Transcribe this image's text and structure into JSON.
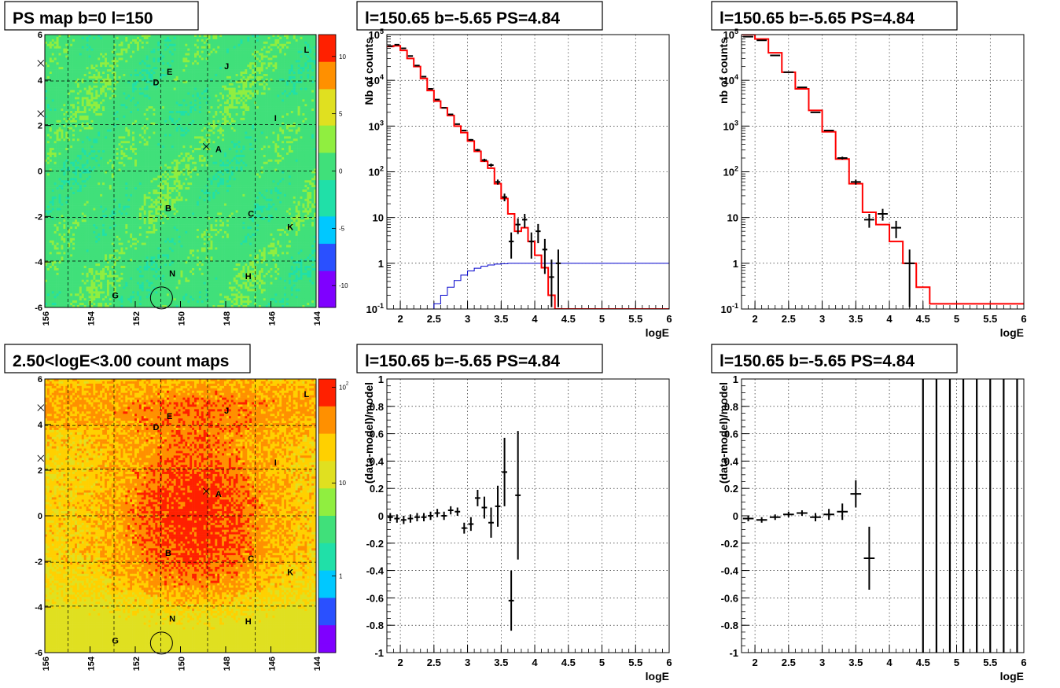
{
  "map_labels": [
    "A",
    "B",
    "C",
    "D",
    "E",
    "G",
    "H",
    "I",
    "J",
    "K",
    "L",
    "N"
  ],
  "chart_data": [
    {
      "type": "heatmap",
      "panel": "top-left",
      "title": "PS map b=0 l=150",
      "x_ticks": [
        "156",
        "154",
        "152",
        "150",
        "148",
        "146",
        "144"
      ],
      "y_ticks": [
        "6",
        "4",
        "2",
        "0",
        "-2",
        "-4",
        "-6"
      ],
      "xlim": [
        156,
        144
      ],
      "ylim": [
        -6,
        6
      ],
      "colorbar_ticks": [
        "10",
        "5",
        "0",
        "-5",
        "-10"
      ],
      "zlim": [
        -13,
        13
      ],
      "palette": [
        "#7f00ff",
        "#2a50ff",
        "#00c8ff",
        "#20e0a8",
        "#40e07a",
        "#90ee40",
        "#e0e020",
        "#ff9000",
        "#ff2000"
      ],
      "grid": true
    },
    {
      "type": "line",
      "panel": "top-middle",
      "title": "l=150.65 b=-5.65 PS=4.84",
      "xlabel": "logE",
      "ylabel": "Nb of counts",
      "y_log": true,
      "xlim": [
        1.8,
        6
      ],
      "ylim": [
        0.1,
        100000
      ],
      "x_ticks": [
        "2",
        "2.5",
        "3",
        "3.5",
        "4",
        "4.5",
        "5",
        "5.5",
        "6"
      ],
      "y_ticks": [
        "10^-1",
        "1",
        "10",
        "10^2",
        "10^3",
        "10^4",
        "10^5"
      ],
      "grid": true,
      "series": [
        {
          "color": "#000000",
          "style": "errorbars",
          "x": [
            1.85,
            1.95,
            2.05,
            2.15,
            2.25,
            2.35,
            2.45,
            2.55,
            2.65,
            2.75,
            2.85,
            2.95,
            3.05,
            3.15,
            3.25,
            3.35,
            3.45,
            3.55,
            3.65,
            3.75,
            3.85,
            3.95,
            4.05,
            4.15,
            4.25,
            4.35
          ],
          "y": [
            56000,
            60000,
            50000,
            34000,
            21000,
            12000,
            6500,
            3800,
            2500,
            1800,
            1100,
            800,
            500,
            300,
            180,
            140,
            60,
            28,
            3,
            7,
            9,
            3,
            5,
            2,
            0.5,
            1
          ]
        },
        {
          "color": "#ff0000",
          "style": "histogram",
          "x": [
            1.85,
            1.95,
            2.05,
            2.15,
            2.25,
            2.35,
            2.45,
            2.55,
            2.65,
            2.75,
            2.85,
            2.95,
            3.05,
            3.15,
            3.25,
            3.35,
            3.45,
            3.55,
            3.65,
            3.75,
            3.85,
            3.95,
            4.05,
            4.15,
            4.25,
            4.35,
            4.45,
            4.55
          ],
          "y": [
            55000,
            57000,
            45000,
            30000,
            20000,
            11000,
            6000,
            3500,
            2500,
            1700,
            1000,
            720,
            470,
            280,
            170,
            120,
            55,
            26,
            12,
            5,
            6,
            3,
            1.5,
            0.8,
            0.2,
            0.1,
            0.1,
            0.1
          ]
        },
        {
          "color": "#0000cc",
          "style": "histogram",
          "x": [
            1.85,
            1.95,
            2.05,
            2.15,
            2.25,
            2.35,
            2.45,
            2.55,
            2.65,
            2.75,
            2.85,
            2.95,
            3.05,
            3.15,
            3.25,
            3.35,
            3.45,
            3.55,
            3.65,
            3.75,
            3.85,
            3.95,
            4.05,
            4.15,
            4.25,
            4.35,
            4.45,
            4.55
          ],
          "y": [
            0.1,
            0.1,
            0.1,
            0.1,
            0.1,
            0.1,
            0.1,
            0.13,
            0.2,
            0.3,
            0.42,
            0.55,
            0.68,
            0.78,
            0.86,
            0.92,
            0.96,
            0.98,
            1,
            1,
            1,
            1,
            1,
            1,
            1,
            1,
            1,
            1
          ]
        }
      ]
    },
    {
      "type": "line",
      "panel": "top-right",
      "title": "l=150.65 b=-5.65 PS=4.84",
      "xlabel": "logE",
      "ylabel": "nb of counts",
      "y_log": true,
      "xlim": [
        1.8,
        6
      ],
      "ylim": [
        0.1,
        100000
      ],
      "x_ticks": [
        "2",
        "2.5",
        "3",
        "3.5",
        "4",
        "4.5",
        "5",
        "5.5",
        "6"
      ],
      "y_ticks": [
        "10^-1",
        "1",
        "10",
        "10^2",
        "10^3",
        "10^4",
        "10^5"
      ],
      "grid": true,
      "series": [
        {
          "color": "#000000",
          "style": "errorbars",
          "x": [
            1.9,
            2.1,
            2.3,
            2.5,
            2.7,
            2.9,
            3.1,
            3.3,
            3.5,
            3.7,
            3.9,
            4.1,
            4.3
          ],
          "y": [
            90000,
            75000,
            35000,
            15000,
            7000,
            2000,
            800,
            200,
            60,
            9,
            12,
            6,
            1
          ]
        },
        {
          "color": "#ff0000",
          "style": "histogram",
          "x": [
            1.9,
            2.1,
            2.3,
            2.5,
            2.7,
            2.9,
            3.1,
            3.3,
            3.5,
            3.7,
            3.9,
            4.1,
            4.3,
            4.5,
            4.7
          ],
          "y": [
            100000,
            80000,
            40000,
            15000,
            6500,
            2200,
            750,
            190,
            55,
            13,
            7,
            3,
            1,
            0.3,
            0.13
          ]
        }
      ]
    },
    {
      "type": "heatmap",
      "panel": "bottom-left",
      "title": "2.50<logE<3.00 count maps",
      "x_ticks": [
        "156",
        "154",
        "152",
        "150",
        "148",
        "146",
        "144"
      ],
      "y_ticks": [
        "6",
        "4",
        "2",
        "0",
        "-2",
        "-4",
        "-6"
      ],
      "xlim": [
        156,
        144
      ],
      "ylim": [
        -6,
        6
      ],
      "colorbar_ticks": [
        "10^2",
        "10",
        "1"
      ],
      "zlim": [
        0.3,
        150
      ],
      "palette": [
        "#7f00ff",
        "#2a50ff",
        "#00c8ff",
        "#20e0a8",
        "#40e07a",
        "#90ee40",
        "#e0e020",
        "#ffd000",
        "#ff9000",
        "#ff2000"
      ],
      "grid": true
    },
    {
      "type": "scatter",
      "panel": "bottom-middle",
      "title": "l=150.65 b=-5.65 PS=4.84",
      "xlabel": "logE",
      "ylabel": "(data-model)/model",
      "xlim": [
        1.8,
        6
      ],
      "ylim": [
        -1,
        1
      ],
      "x_ticks": [
        "2",
        "2.5",
        "3",
        "3.5",
        "4",
        "4.5",
        "5",
        "5.5",
        "6"
      ],
      "y_ticks": [
        "1",
        "0.8",
        "0.6",
        "0.4",
        "0.2",
        "0",
        "-0.2",
        "-0.4",
        "-0.6",
        "-0.8",
        "-1"
      ],
      "grid": true,
      "points": [
        {
          "x": 1.85,
          "y": -0.01,
          "err": 0.03
        },
        {
          "x": 1.95,
          "y": -0.02,
          "err": 0.03
        },
        {
          "x": 2.05,
          "y": -0.03,
          "err": 0.03
        },
        {
          "x": 2.15,
          "y": -0.02,
          "err": 0.03
        },
        {
          "x": 2.25,
          "y": -0.01,
          "err": 0.03
        },
        {
          "x": 2.35,
          "y": -0.01,
          "err": 0.03
        },
        {
          "x": 2.45,
          "y": 0.0,
          "err": 0.03
        },
        {
          "x": 2.55,
          "y": 0.02,
          "err": 0.03
        },
        {
          "x": 2.65,
          "y": 0.0,
          "err": 0.03
        },
        {
          "x": 2.75,
          "y": 0.04,
          "err": 0.03
        },
        {
          "x": 2.85,
          "y": 0.03,
          "err": 0.03
        },
        {
          "x": 2.95,
          "y": -0.09,
          "err": 0.04
        },
        {
          "x": 3.05,
          "y": -0.06,
          "err": 0.05
        },
        {
          "x": 3.15,
          "y": 0.13,
          "err": 0.06
        },
        {
          "x": 3.25,
          "y": 0.06,
          "err": 0.08
        },
        {
          "x": 3.35,
          "y": -0.05,
          "err": 0.11
        },
        {
          "x": 3.45,
          "y": 0.07,
          "err": 0.15
        },
        {
          "x": 3.55,
          "y": 0.32,
          "err": 0.25
        },
        {
          "x": 3.65,
          "y": -0.62,
          "err": 0.22
        },
        {
          "x": 3.75,
          "y": 0.15,
          "err": 0.47
        }
      ]
    },
    {
      "type": "scatter",
      "panel": "bottom-right",
      "title": "l=150.65 b=-5.65 PS=4.84",
      "xlabel": "logE",
      "ylabel": "(data-model)/model",
      "xlim": [
        1.8,
        6
      ],
      "ylim": [
        -1,
        1
      ],
      "x_ticks": [
        "2",
        "2.5",
        "3",
        "3.5",
        "4",
        "4.5",
        "5",
        "5.5",
        "6"
      ],
      "y_ticks": [
        "1",
        "0.8",
        "0.6",
        "0.4",
        "0.2",
        "0",
        "-0.2",
        "-0.4",
        "-0.6",
        "-0.8",
        "-1"
      ],
      "grid": true,
      "points": [
        {
          "x": 1.9,
          "y": -0.02,
          "err": 0.02
        },
        {
          "x": 2.1,
          "y": -0.03,
          "err": 0.02
        },
        {
          "x": 2.3,
          "y": -0.01,
          "err": 0.02
        },
        {
          "x": 2.5,
          "y": 0.01,
          "err": 0.02
        },
        {
          "x": 2.7,
          "y": 0.02,
          "err": 0.02
        },
        {
          "x": 2.9,
          "y": -0.01,
          "err": 0.03
        },
        {
          "x": 3.1,
          "y": 0.01,
          "err": 0.04
        },
        {
          "x": 3.3,
          "y": 0.03,
          "err": 0.06
        },
        {
          "x": 3.5,
          "y": 0.16,
          "err": 0.1
        },
        {
          "x": 3.7,
          "y": -0.31,
          "err": 0.23
        }
      ],
      "full_height_bars_x": [
        4.5,
        4.7,
        4.9,
        5.1,
        5.3,
        5.5,
        5.7,
        5.9
      ]
    }
  ]
}
